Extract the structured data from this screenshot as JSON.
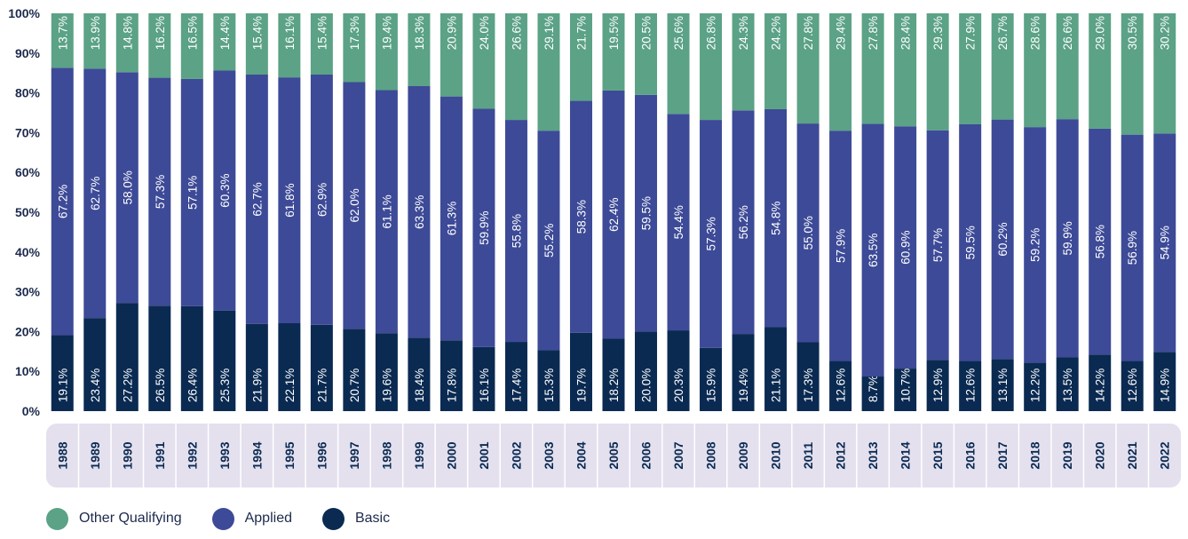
{
  "chart_data": {
    "type": "bar",
    "stacked": true,
    "title": "",
    "xlabel": "",
    "ylabel": "",
    "ylim": [
      0,
      100
    ],
    "yticks": [
      "0%",
      "10%",
      "20%",
      "30%",
      "40%",
      "50%",
      "60%",
      "70%",
      "80%",
      "90%",
      "100%"
    ],
    "categories": [
      "1988",
      "1989",
      "1990",
      "1991",
      "1992",
      "1993",
      "1994",
      "1995",
      "1996",
      "1997",
      "1998",
      "1999",
      "2000",
      "2001",
      "2002",
      "2003",
      "2004",
      "2005",
      "2006",
      "2007",
      "2008",
      "2009",
      "2010",
      "2011",
      "2012",
      "2013",
      "2014",
      "2015",
      "2016",
      "2017",
      "2018",
      "2019",
      "2020",
      "2021",
      "2022"
    ],
    "series": [
      {
        "name": "Basic",
        "color": "#0a2a52",
        "values": [
          19.1,
          23.4,
          27.2,
          26.5,
          26.4,
          25.3,
          21.9,
          22.1,
          21.7,
          20.7,
          19.6,
          18.4,
          17.8,
          16.1,
          17.4,
          15.3,
          19.7,
          18.2,
          20.0,
          20.3,
          15.9,
          19.4,
          21.1,
          17.3,
          12.6,
          8.7,
          10.7,
          12.9,
          12.6,
          13.1,
          12.2,
          13.5,
          14.2,
          12.6,
          14.9
        ],
        "labels": [
          "19.1%",
          "23.4%",
          "27.2%",
          "26.5%",
          "26.4%",
          "25.3%",
          "21.9%",
          "22.1%",
          "21.7%",
          "20.7%",
          "19.6%",
          "18.4%",
          "17.8%",
          "16.1%",
          "17.4%",
          "15.3%",
          "19.7%",
          "18.2%",
          "20.0%",
          "20.3%",
          "15.9%",
          "19.4%",
          "21.1%",
          "17.3%",
          "12.6%",
          "8.7%",
          "10.7%",
          "12.9%",
          "12.6%",
          "13.1%",
          "12.2%",
          "13.5%",
          "14.2%",
          "12.6%",
          "14.9%"
        ]
      },
      {
        "name": "Applied",
        "color": "#3d4a97",
        "values": [
          67.2,
          62.7,
          58.0,
          57.3,
          57.1,
          60.3,
          62.7,
          61.8,
          62.9,
          62.0,
          61.1,
          63.3,
          61.3,
          59.9,
          55.8,
          55.2,
          58.3,
          62.4,
          59.5,
          54.4,
          57.3,
          56.2,
          54.8,
          55.0,
          57.9,
          63.5,
          60.9,
          57.7,
          59.5,
          60.2,
          59.2,
          59.9,
          56.8,
          56.9,
          54.9
        ],
        "labels": [
          "67.2%",
          "62.7%",
          "58.0%",
          "57.3%",
          "57.1%",
          "60.3%",
          "62.7%",
          "61.8%",
          "62.9%",
          "62.0%",
          "61.1%",
          "63.3%",
          "61.3%",
          "59.9%",
          "55.8%",
          "55.2%",
          "58.3%",
          "62.4%",
          "59.5%",
          "54.4%",
          "57.3%",
          "56.2%",
          "54.8%",
          "55.0%",
          "57.9%",
          "63.5%",
          "60.9%",
          "57.7%",
          "59.5%",
          "60.2%",
          "59.2%",
          "59.9%",
          "56.8%",
          "56.9%",
          "54.9%"
        ]
      },
      {
        "name": "Other Qualifying",
        "color": "#5ba286",
        "values": [
          13.7,
          13.9,
          14.8,
          16.2,
          16.5,
          14.4,
          15.4,
          16.1,
          15.4,
          17.3,
          19.4,
          18.3,
          20.9,
          24.0,
          26.6,
          29.1,
          21.7,
          19.5,
          20.5,
          25.6,
          26.8,
          24.3,
          24.2,
          27.8,
          29.4,
          27.8,
          28.4,
          29.3,
          27.9,
          26.7,
          28.6,
          26.6,
          29.0,
          30.5,
          30.2
        ],
        "labels": [
          "13.7%",
          "13.9%",
          "14.8%",
          "16.2%",
          "16.5%",
          "14.4%",
          "15.4%",
          "16.1%",
          "15.4%",
          "17.3%",
          "19.4%",
          "18.3%",
          "20.9%",
          "24.0%",
          "26.6%",
          "29.1%",
          "21.7%",
          "19.5%",
          "20.5%",
          "25.6%",
          "26.8%",
          "24.3%",
          "24.2%",
          "27.8%",
          "29.4%",
          "27.8%",
          "28.4%",
          "29.3%",
          "27.9%",
          "26.7%",
          "28.6%",
          "26.6%",
          "29.0%",
          "30.5%",
          "30.2%"
        ]
      }
    ],
    "legend": {
      "position": "bottom-left",
      "items": [
        {
          "name": "Other Qualifying",
          "color": "#5ba286"
        },
        {
          "name": "Applied",
          "color": "#3d4a97"
        },
        {
          "name": "Basic",
          "color": "#0a2a52"
        }
      ]
    },
    "colors": {
      "axis_band": "#e4e0ee",
      "tick_text": "#1d2a4d",
      "category_text": "#0a2a52"
    }
  }
}
